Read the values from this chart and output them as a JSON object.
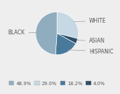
{
  "labels": [
    "WHITE",
    "ASIAN",
    "HISPANIC",
    "BLACK"
  ],
  "values": [
    29.0,
    4.0,
    18.2,
    48.9
  ],
  "colors": [
    "#c5d8e3",
    "#2c4e6b",
    "#4a7a9b",
    "#8fadbf"
  ],
  "legend_labels": [
    "48.9%",
    "29.0%",
    "18.2%",
    "4.0%"
  ],
  "legend_colors": [
    "#8fadbf",
    "#c5d8e3",
    "#4a7a9b",
    "#2c4e6b"
  ],
  "label_info": [
    {
      "label": "WHITE",
      "side": "right",
      "yoffset": 0.0
    },
    {
      "label": "ASIAN",
      "side": "right",
      "yoffset": 0.0
    },
    {
      "label": "HISPANIC",
      "side": "right",
      "yoffset": 0.0
    },
    {
      "label": "BLACK",
      "side": "left",
      "yoffset": 0.0
    }
  ],
  "background_color": "#eeeeee",
  "text_color": "#555555",
  "fontsize": 5.5,
  "legend_fontsize": 5.0
}
